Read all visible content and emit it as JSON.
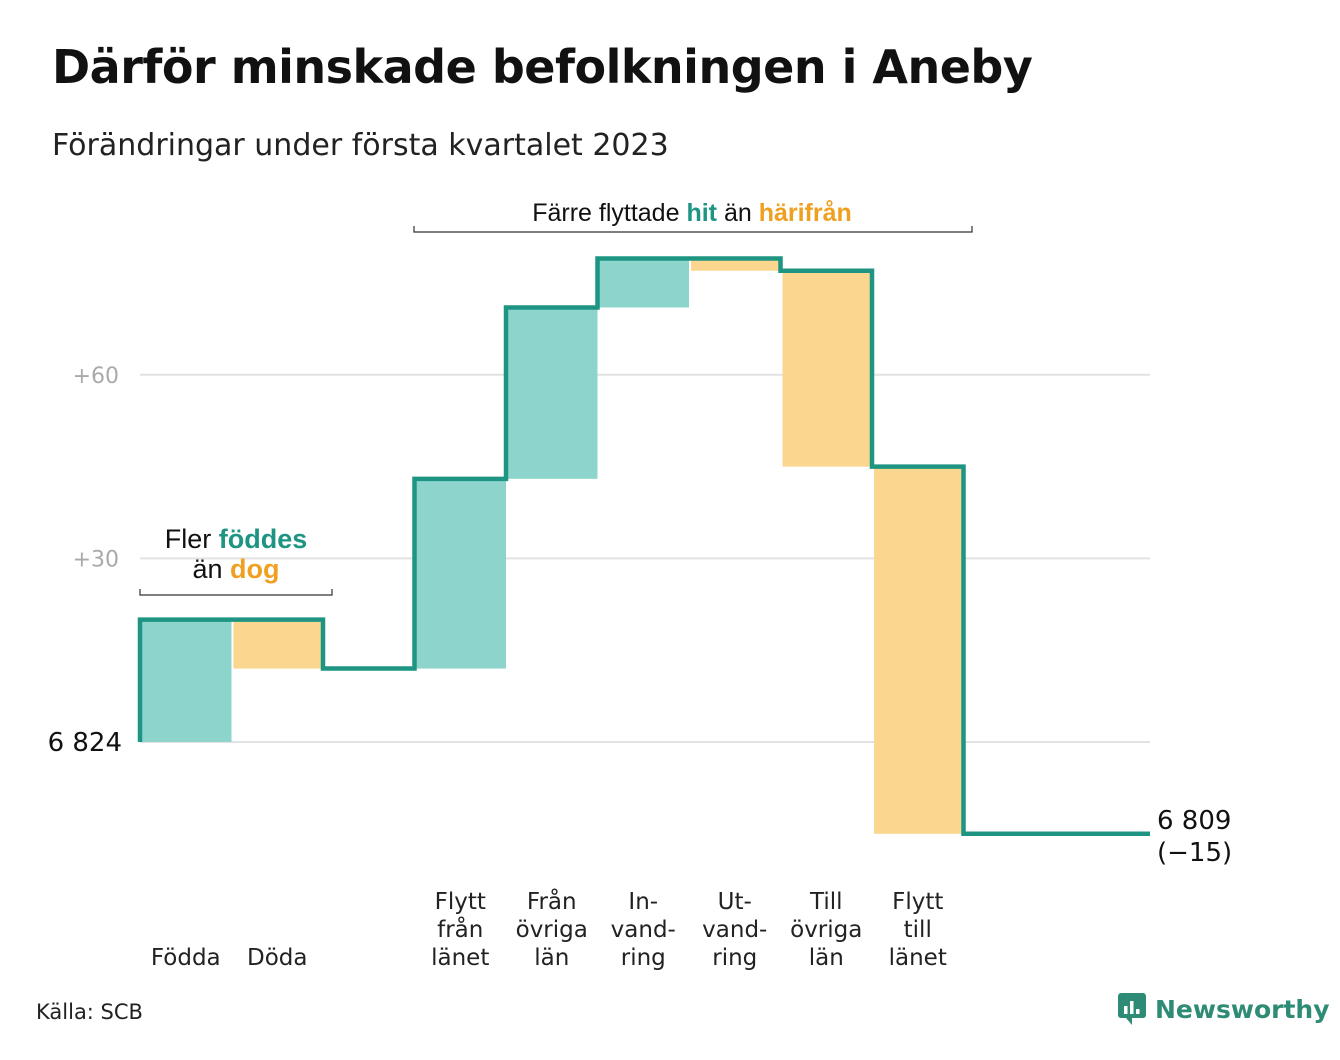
{
  "title": "Därför minskade befolkningen i Aneby",
  "subtitle": "Förändringar under första kvartalet 2023",
  "source": "Källa: SCB",
  "brand": "Newsworthy",
  "colors": {
    "increase_fill": "#8dd5cc",
    "decrease_fill": "#fad68f",
    "line": "#1e9583",
    "increase_text": "#1e9583",
    "decrease_text": "#f0a020",
    "grid": "#e2e2e2",
    "tick_text": "#aaaaaa"
  },
  "annotations": {
    "births": {
      "line1_prefix": "Fler",
      "line1_highlight": "föddes",
      "line2_prefix": "än",
      "line2_highlight": "dog"
    },
    "moves": {
      "prefix": "Färre flyttade",
      "hit": "hit",
      "middle": "än",
      "harifran": "härifrån"
    }
  },
  "chart_data": {
    "type": "waterfall",
    "start_value": 6824,
    "start_label": "6 824",
    "end_value": 6809,
    "end_label": "6 809",
    "end_change_label": "(−15)",
    "y_ticks": [
      {
        "value": 30,
        "label": "+30"
      },
      {
        "value": 60,
        "label": "+60"
      }
    ],
    "grid": true,
    "categories": [
      {
        "label": [
          "Födda"
        ],
        "change": 20
      },
      {
        "label": [
          "Döda"
        ],
        "change": -8
      },
      {
        "label": [],
        "change": 0
      },
      {
        "label": [
          "Flytt",
          "från",
          "länet"
        ],
        "change": 31
      },
      {
        "label": [
          "Från",
          "övriga",
          "län"
        ],
        "change": 28
      },
      {
        "label": [
          "In-",
          "vand-",
          "ring"
        ],
        "change": 8
      },
      {
        "label": [
          "Ut-",
          "vand-",
          "ring"
        ],
        "change": -2
      },
      {
        "label": [
          "Till",
          "övriga",
          "län"
        ],
        "change": -32
      },
      {
        "label": [
          "Flytt",
          "till",
          "länet"
        ],
        "change": -60
      }
    ]
  }
}
